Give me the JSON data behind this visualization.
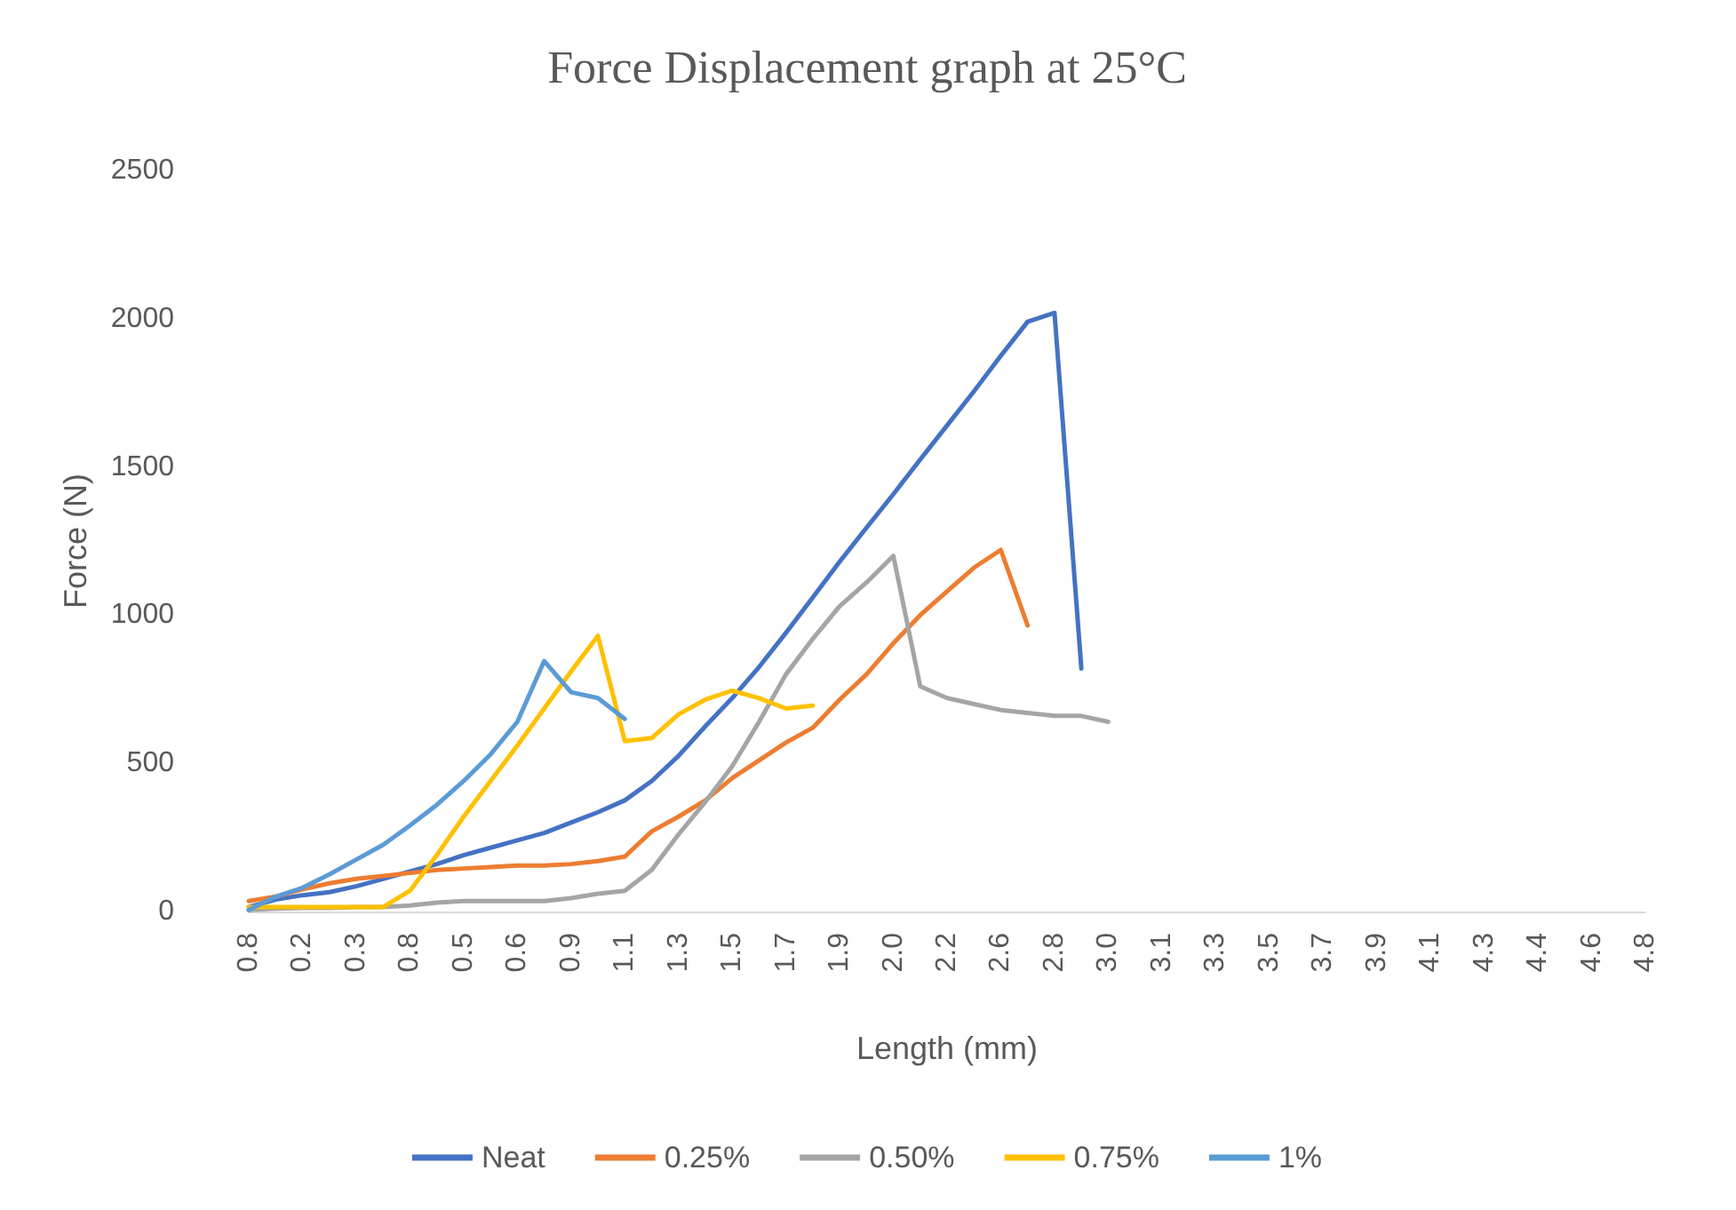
{
  "chart_data": {
    "type": "line",
    "title": "Force Displacement graph at 25°C",
    "xlabel": "Length (mm)",
    "ylabel": "Force (N)",
    "categories": [
      "0.8",
      null,
      "0.2",
      null,
      "0.3",
      null,
      "0.8",
      null,
      "0.5",
      null,
      "0.6",
      null,
      "0.9",
      null,
      "1.1",
      null,
      "1.3",
      null,
      "1.5",
      null,
      "1.7",
      null,
      "1.9",
      null,
      "2.0",
      null,
      "2.2",
      null,
      "2.6",
      null,
      "2.8",
      null,
      "3.0",
      null,
      "3.1",
      null,
      "3.3",
      null,
      "3.5",
      null,
      "3.7",
      null,
      "3.9",
      null,
      "4.1",
      null,
      "4.3",
      null,
      "4.4",
      null,
      "4.6",
      null,
      "4.8"
    ],
    "series": [
      {
        "name": "Neat",
        "color": "#4472c4",
        "values": [
          15,
          40,
          55,
          65,
          85,
          110,
          135,
          160,
          190,
          215,
          240,
          265,
          300,
          335,
          375,
          440,
          525,
          625,
          720,
          825,
          940,
          1060,
          1180,
          1295,
          1408,
          1525,
          1640,
          1755,
          1875,
          1990,
          2020,
          820,
          null,
          null,
          null,
          null,
          null,
          null,
          null,
          null,
          null,
          null,
          null,
          null,
          null,
          null,
          null,
          null,
          null,
          null,
          null,
          null,
          null
        ]
      },
      {
        "name": "0.25%",
        "color": "#ed7d31",
        "values": [
          35,
          50,
          75,
          95,
          110,
          120,
          130,
          140,
          145,
          150,
          155,
          155,
          160,
          170,
          185,
          270,
          320,
          375,
          450,
          510,
          570,
          620,
          715,
          800,
          905,
          1000,
          1080,
          1160,
          1220,
          965,
          null,
          null,
          null,
          null,
          null,
          null,
          null,
          null,
          null,
          null,
          null,
          null,
          null,
          null,
          null,
          null,
          null,
          null,
          null,
          null,
          null,
          null,
          null
        ]
      },
      {
        "name": "0.50%",
        "color": "#a5a5a5",
        "values": [
          5,
          10,
          12,
          12,
          15,
          15,
          20,
          30,
          35,
          35,
          35,
          35,
          45,
          60,
          70,
          140,
          260,
          370,
          490,
          640,
          800,
          920,
          1030,
          1110,
          1200,
          760,
          720,
          700,
          680,
          670,
          660,
          660,
          640,
          null,
          null,
          null,
          null,
          null,
          null,
          null,
          null,
          null,
          null,
          null,
          null,
          null,
          null,
          null,
          null,
          null,
          null,
          null,
          null
        ]
      },
      {
        "name": "0.75%",
        "color": "#ffc000",
        "values": [
          15,
          15,
          15,
          15,
          15,
          15,
          70,
          190,
          320,
          440,
          560,
          685,
          810,
          930,
          575,
          585,
          665,
          715,
          745,
          720,
          685,
          695,
          null,
          null,
          null,
          null,
          null,
          null,
          null,
          null,
          null,
          null,
          null,
          null,
          null,
          null,
          null,
          null,
          null,
          null,
          null,
          null,
          null,
          null,
          null,
          null,
          null,
          null,
          null,
          null,
          null,
          null,
          null
        ]
      },
      {
        "name": "1%",
        "color": "#5b9bd5",
        "values": [
          5,
          50,
          80,
          125,
          175,
          225,
          290,
          360,
          440,
          530,
          640,
          845,
          740,
          720,
          650,
          null,
          null,
          null,
          null,
          null,
          null,
          null,
          null,
          null,
          null,
          null,
          null,
          null,
          null,
          null,
          null,
          null,
          null,
          null,
          null,
          null,
          null,
          null,
          null,
          null,
          null,
          null,
          null,
          null,
          null,
          null,
          null,
          null,
          null,
          null,
          null,
          null,
          null
        ]
      }
    ],
    "ylim": [
      0,
      2500
    ],
    "yticks": [
      0,
      500,
      1000,
      1500,
      2000,
      2500
    ],
    "grid": false,
    "legend": "bottom",
    "marker": "none",
    "line_style": "solid"
  }
}
